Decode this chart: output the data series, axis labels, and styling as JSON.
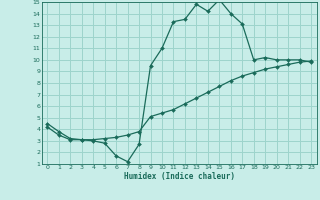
{
  "xlabel": "Humidex (Indice chaleur)",
  "bg_color": "#c8ede8",
  "grid_color": "#9dd4cc",
  "line_color": "#1a6b5a",
  "xlim": [
    -0.5,
    23.5
  ],
  "ylim": [
    1,
    15
  ],
  "xticks": [
    0,
    1,
    2,
    3,
    4,
    5,
    6,
    7,
    8,
    9,
    10,
    11,
    12,
    13,
    14,
    15,
    16,
    17,
    18,
    19,
    20,
    21,
    22,
    23
  ],
  "yticks": [
    1,
    2,
    3,
    4,
    5,
    6,
    7,
    8,
    9,
    10,
    11,
    12,
    13,
    14,
    15
  ],
  "line1_x": [
    0,
    1,
    2,
    3,
    4,
    5,
    6,
    7,
    8,
    9,
    10,
    11,
    12,
    13,
    14,
    15,
    16,
    17,
    18,
    19,
    20,
    21,
    22,
    23
  ],
  "line1_y": [
    4.5,
    3.8,
    3.2,
    3.1,
    3.0,
    2.8,
    1.7,
    1.2,
    2.7,
    9.5,
    11.0,
    13.3,
    13.5,
    14.8,
    14.2,
    15.2,
    14.0,
    13.1,
    10.0,
    10.2,
    10.0,
    10.0,
    10.0,
    9.8
  ],
  "line2_x": [
    0,
    1,
    2,
    3,
    4,
    5,
    6,
    7,
    8,
    9,
    10,
    11,
    12,
    13,
    14,
    15,
    16,
    17,
    18,
    19,
    20,
    21,
    22,
    23
  ],
  "line2_y": [
    4.2,
    3.5,
    3.1,
    3.1,
    3.1,
    3.2,
    3.3,
    3.5,
    3.8,
    5.1,
    5.4,
    5.7,
    6.2,
    6.7,
    7.2,
    7.7,
    8.2,
    8.6,
    8.9,
    9.2,
    9.4,
    9.6,
    9.8,
    9.9
  ]
}
